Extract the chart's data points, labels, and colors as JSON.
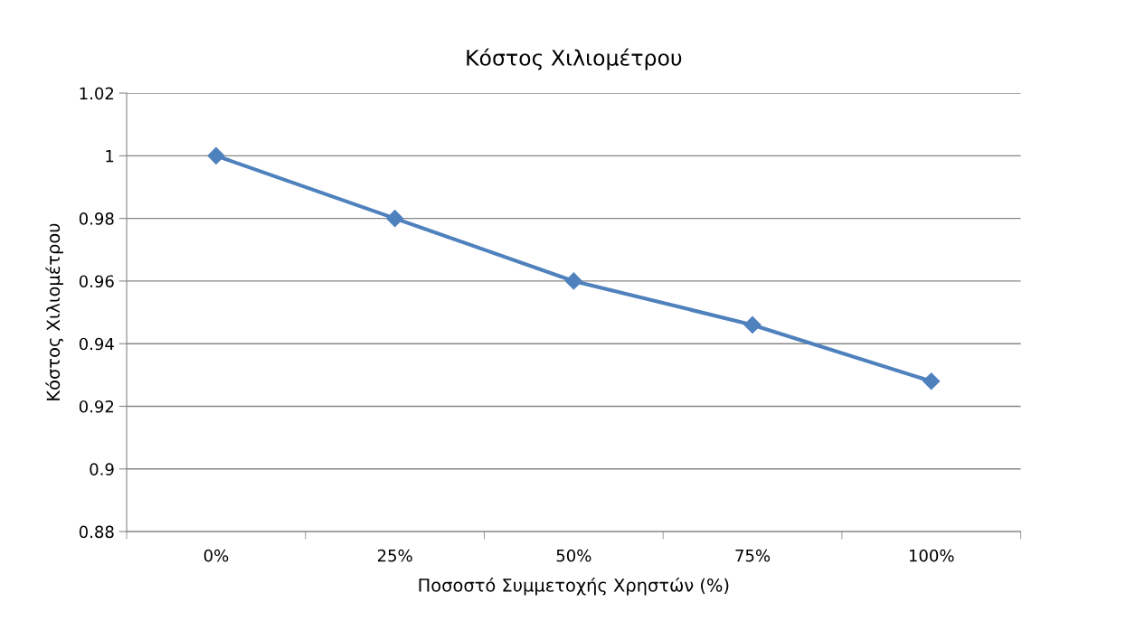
{
  "chart_data": {
    "type": "line",
    "title": "Κόστος Χιλιομέτρου",
    "xlabel": "Ποσοστό Συμμετοχής Χρηστών (%)",
    "ylabel": "Κόστος Χιλιομέτρου",
    "categories": [
      "0%",
      "25%",
      "50%",
      "75%",
      "100%"
    ],
    "series": [
      {
        "color": "#4f81bd",
        "values": [
          1.0,
          0.98,
          0.96,
          0.946,
          0.928
        ]
      }
    ],
    "ylim": [
      0.88,
      1.02
    ],
    "yticks": [
      {
        "value": 0.88,
        "label": "0.88"
      },
      {
        "value": 0.9,
        "label": "0.9"
      },
      {
        "value": 0.92,
        "label": "0.92"
      },
      {
        "value": 0.94,
        "label": "0.94"
      },
      {
        "value": 0.96,
        "label": "0.96"
      },
      {
        "value": 0.98,
        "label": "0.98"
      },
      {
        "value": 1,
        "label": "1"
      },
      {
        "value": 1.02,
        "label": "1.02"
      }
    ],
    "grid": "y",
    "legend": false,
    "marker": "diamond",
    "line_style": "solid"
  }
}
